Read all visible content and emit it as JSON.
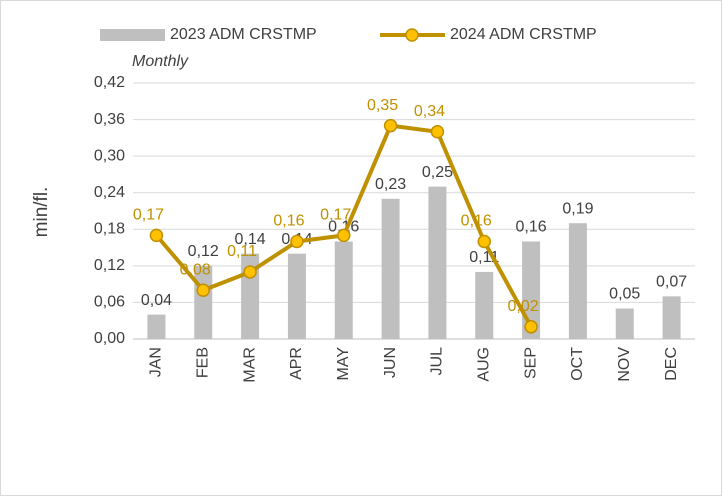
{
  "chart_data": {
    "type": "bar",
    "ylabel": "min/fl.",
    "subtitle": "Monthly",
    "categories": [
      "JAN",
      "FEB",
      "MAR",
      "APR",
      "MAY",
      "JUN",
      "JUL",
      "AUG",
      "SEP",
      "OCT",
      "NOV",
      "DEC"
    ],
    "series": [
      {
        "name": "2023 ADM CRSTMP",
        "type": "bar",
        "color": "#bfbfbf",
        "values": [
          0.04,
          0.12,
          0.14,
          0.14,
          0.16,
          0.23,
          0.25,
          0.11,
          0.16,
          0.19,
          0.05,
          0.07
        ],
        "value_labels": [
          "0,04",
          "0,12",
          "0,14",
          "0,14",
          "0,16",
          "0,23",
          "0,25",
          "0,11",
          "0,16",
          "0,19",
          "0,05",
          "0,07"
        ]
      },
      {
        "name": "2024 ADM CRSTMP",
        "type": "line",
        "color": "#bf9000",
        "values": [
          0.17,
          0.08,
          0.11,
          0.16,
          0.17,
          0.35,
          0.34,
          0.16,
          0.02,
          null,
          null,
          null
        ],
        "value_labels": [
          "0,17",
          "0,08",
          "0,11",
          "0,16",
          "0,17",
          "0,35",
          "0,34",
          "0,16",
          "0,02",
          null,
          null,
          null
        ]
      }
    ],
    "ylim": [
      0,
      0.42
    ],
    "yticks": [
      {
        "value": 0,
        "label": "0,00"
      },
      {
        "value": 0.06,
        "label": "0,06"
      },
      {
        "value": 0.12,
        "label": "0,12"
      },
      {
        "value": 0.18,
        "label": "0,18"
      },
      {
        "value": 0.24,
        "label": "0,24"
      },
      {
        "value": 0.3,
        "label": "0,30"
      },
      {
        "value": 0.36,
        "label": "0,36"
      },
      {
        "value": 0.42,
        "label": "0,42"
      }
    ],
    "grid": true
  }
}
